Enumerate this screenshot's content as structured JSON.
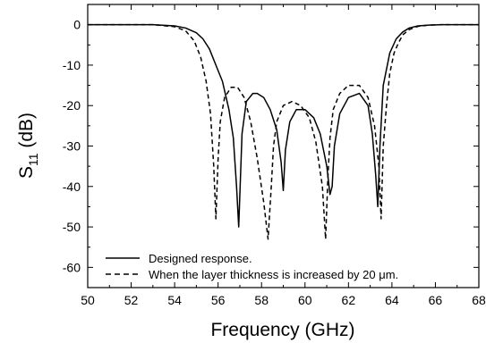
{
  "chart_data": {
    "type": "line",
    "title": "",
    "xlabel": "Frequency (GHz)",
    "ylabel": {
      "main": "S",
      "sub": "11",
      "unit": " (dB)"
    },
    "xlim": [
      50,
      68
    ],
    "ylim": [
      -65,
      5
    ],
    "xticks": [
      50,
      52,
      54,
      56,
      58,
      60,
      62,
      64,
      66,
      68
    ],
    "yticks": [
      0,
      -10,
      -20,
      -30,
      -40,
      -50,
      -60
    ],
    "grid": false,
    "legend_position": "bottom-left",
    "series": [
      {
        "name": "Designed response.",
        "style": "solid",
        "color": "#000000",
        "x": [
          50,
          53,
          54,
          54.5,
          55,
          55.3,
          55.6,
          55.9,
          56.2,
          56.5,
          56.7,
          56.85,
          56.95,
          57.1,
          57.3,
          57.6,
          57.8,
          58.1,
          58.4,
          58.7,
          58.9,
          59.0,
          59.1,
          59.3,
          59.6,
          60.0,
          60.4,
          60.7,
          61.0,
          61.15,
          61.25,
          61.35,
          61.6,
          62.0,
          62.5,
          62.9,
          63.1,
          63.25,
          63.35,
          63.45,
          63.6,
          63.9,
          64.2,
          64.5,
          64.8,
          65.2,
          65.7,
          66.3,
          68
        ],
        "y": [
          0,
          0,
          -0.3,
          -0.8,
          -2,
          -3.5,
          -6,
          -10,
          -14,
          -21,
          -28,
          -40,
          -50,
          -27,
          -19,
          -17,
          -17,
          -18,
          -21,
          -26,
          -34,
          -41,
          -31,
          -24,
          -21,
          -21,
          -23,
          -27,
          -35,
          -42,
          -40,
          -30,
          -22,
          -18,
          -17,
          -20,
          -27,
          -37,
          -45,
          -30,
          -15,
          -7,
          -3.5,
          -1.8,
          -0.8,
          -0.3,
          -0.1,
          0,
          0
        ]
      },
      {
        "name": "When the layer thickness is increased by 20 μm.",
        "style": "dashed",
        "color": "#000000",
        "x": [
          50,
          53,
          54,
          54.5,
          54.9,
          55.2,
          55.45,
          55.65,
          55.8,
          55.9,
          56.0,
          56.1,
          56.3,
          56.6,
          56.9,
          57.2,
          57.5,
          57.8,
          58.1,
          58.3,
          58.45,
          58.55,
          58.7,
          59.0,
          59.4,
          59.8,
          60.2,
          60.5,
          60.8,
          60.95,
          61.05,
          61.15,
          61.3,
          61.6,
          62.0,
          62.5,
          62.9,
          63.2,
          63.4,
          63.5,
          63.6,
          63.75,
          63.9,
          64.1,
          64.3,
          64.5,
          64.8,
          65.2,
          65.7,
          66.3,
          68
        ],
        "y": [
          0,
          0,
          -0.5,
          -1.5,
          -4,
          -8,
          -14,
          -22,
          -35,
          -48,
          -33,
          -24,
          -18,
          -15.5,
          -15.5,
          -18,
          -24,
          -33,
          -44,
          -53,
          -40,
          -30,
          -24,
          -20,
          -19,
          -20,
          -23,
          -29,
          -40,
          -53,
          -38,
          -28,
          -21,
          -17,
          -15,
          -15,
          -18,
          -25,
          -35,
          -48,
          -30,
          -20,
          -12,
          -7,
          -4.5,
          -2.5,
          -1.2,
          -0.4,
          -0.1,
          0,
          0
        ]
      }
    ]
  }
}
